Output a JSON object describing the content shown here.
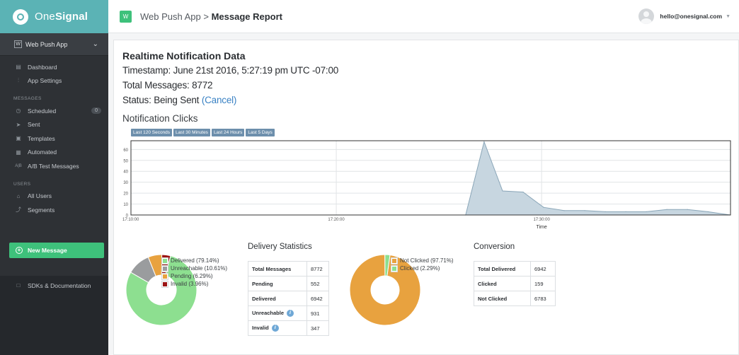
{
  "sidebar": {
    "brand_prefix": "One",
    "brand_suffix": "Signal",
    "app_badge": "W",
    "app_name": "Web Push App",
    "items_top": [
      {
        "label": "Dashboard",
        "icon": "chart-icon"
      },
      {
        "label": "App Settings",
        "icon": "sliders-icon"
      }
    ],
    "messages_header": "MESSAGES",
    "items_messages": [
      {
        "label": "Scheduled",
        "icon": "clock-icon",
        "count": "0"
      },
      {
        "label": "Sent",
        "icon": "paper-plane-icon"
      },
      {
        "label": "Templates",
        "icon": "template-icon"
      },
      {
        "label": "Automated",
        "icon": "keyboard-icon"
      },
      {
        "label": "A/B Test Messages",
        "icon": "ab-icon",
        "icon_text": "A|B"
      }
    ],
    "users_header": "USERS",
    "items_users": [
      {
        "label": "All Users",
        "icon": "user-icon"
      },
      {
        "label": "Segments",
        "icon": "segments-icon"
      }
    ],
    "new_message": "New Message",
    "sdk_label": "SDKs & Documentation"
  },
  "header": {
    "app_badge": "W",
    "crumb_app": "Web Push App >",
    "crumb_page": "Message Report",
    "user_email": "hello@onesignal.com"
  },
  "report": {
    "title": "Realtime Notification Data",
    "timestamp_label": "Timestamp:",
    "timestamp_value": "June 21st 2016, 5:27:19 pm UTC -07:00",
    "total_label": "Total Messages:",
    "total_value": "8772",
    "status_label": "Status:",
    "status_value": "Being Sent",
    "cancel_link": "(Cancel)",
    "clicks_title": "Notification Clicks",
    "ranges": [
      "Last 120 Seconds",
      "Last 30 Minutes",
      "Last 24 Hours",
      "Last 5 Days"
    ]
  },
  "chart_data": {
    "type": "area",
    "xlabel": "Time",
    "ylabel": "",
    "x_ticks": [
      "17:10:00",
      "17:20:00",
      "17:30:00"
    ],
    "y_ticks": [
      0,
      10,
      20,
      30,
      40,
      50,
      60
    ],
    "ylim": [
      0,
      68
    ],
    "x_minutes": [
      0,
      16.2,
      16.8,
      17.5,
      18.3,
      19.1,
      19.9,
      20.7,
      21.5,
      22.3,
      23.1,
      23.9,
      24.7,
      25.5,
      26.3,
      27.1,
      27.9,
      28.7,
      29.5
    ],
    "y": [
      0,
      0,
      0,
      0,
      0,
      0,
      0,
      0,
      0,
      0,
      0,
      0,
      0,
      0,
      0,
      0,
      0,
      0,
      0
    ],
    "points": [
      {
        "t": 0,
        "v": 0
      },
      {
        "t": 16.3,
        "v": 0
      },
      {
        "t": 17.2,
        "v": 67
      },
      {
        "t": 18.1,
        "v": 22
      },
      {
        "t": 19.1,
        "v": 21
      },
      {
        "t": 20.1,
        "v": 7
      },
      {
        "t": 21.1,
        "v": 4
      },
      {
        "t": 22.1,
        "v": 4
      },
      {
        "t": 23.1,
        "v": 3
      },
      {
        "t": 24.1,
        "v": 3
      },
      {
        "t": 25.1,
        "v": 3
      },
      {
        "t": 26.1,
        "v": 5
      },
      {
        "t": 27.1,
        "v": 5
      },
      {
        "t": 28.1,
        "v": 3
      },
      {
        "t": 29.2,
        "v": 0
      }
    ],
    "x_range_minutes": [
      0,
      29.2
    ],
    "grid": true,
    "fill_color": "#c7d6e0",
    "line_color": "#8aa6b8"
  },
  "delivery": {
    "title": "Delivery Statistics",
    "pie_type": "donut",
    "legend": [
      {
        "label": "Delivered (79.14%)",
        "value": 79.14,
        "color": "#8ddf90"
      },
      {
        "label": "Unreachable (10.61%)",
        "value": 10.61,
        "color": "#9a9c9e"
      },
      {
        "label": "Pending (6.29%)",
        "value": 6.29,
        "color": "#e8a23f"
      },
      {
        "label": "Invalid (3.96%)",
        "value": 3.96,
        "color": "#9b1414"
      }
    ],
    "rows": [
      {
        "key": "Total Messages",
        "value": "8772",
        "info": false
      },
      {
        "key": "Pending",
        "value": "552",
        "info": false
      },
      {
        "key": "Delivered",
        "value": "6942",
        "info": false
      },
      {
        "key": "Unreachable",
        "value": "931",
        "info": true
      },
      {
        "key": "Invalid",
        "value": "347",
        "info": true
      }
    ],
    "info_glyph": "i"
  },
  "conversion": {
    "title": "Conversion",
    "legend": [
      {
        "label": "Not Clicked (97.71%)",
        "value": 97.71,
        "color": "#e8a23f"
      },
      {
        "label": "Clicked (2.29%)",
        "value": 2.29,
        "color": "#8ddf90"
      }
    ],
    "rows": [
      {
        "key": "Total Delivered",
        "value": "6942"
      },
      {
        "key": "Clicked",
        "value": "159"
      },
      {
        "key": "Not Clicked",
        "value": "6783"
      }
    ]
  }
}
